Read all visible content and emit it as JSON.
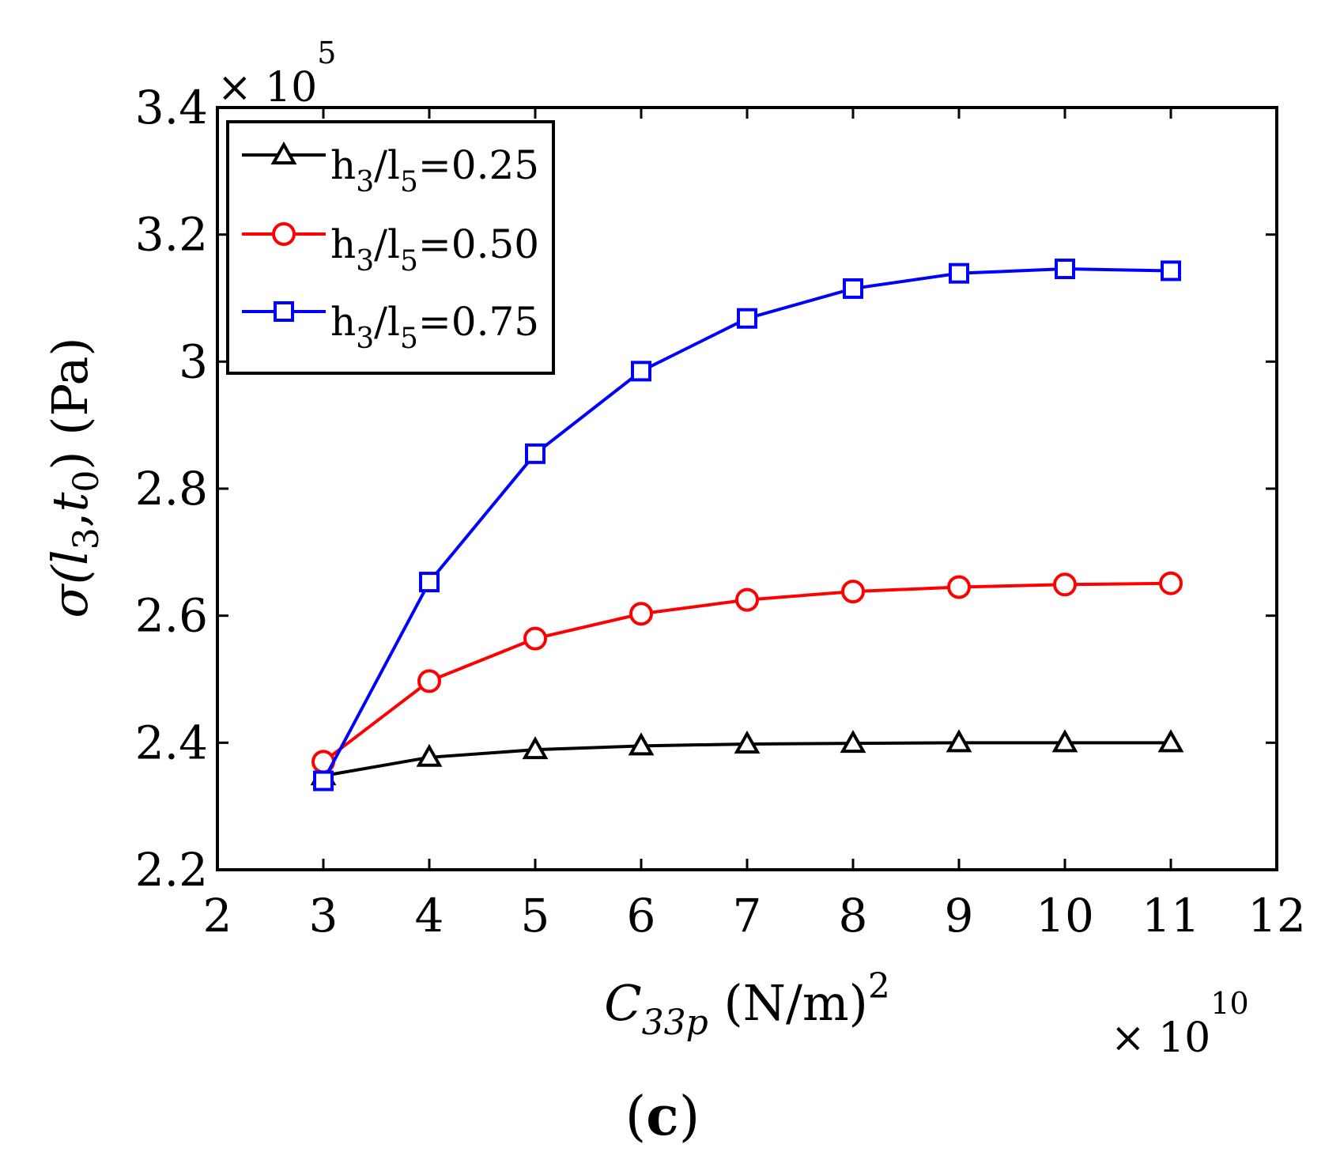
{
  "chart_data": {
    "type": "line",
    "x": [
      3,
      4,
      5,
      6,
      7,
      8,
      9,
      10,
      11
    ],
    "xlim": [
      2,
      12
    ],
    "ylim": [
      2.2,
      3.4
    ],
    "xticks": [
      "2",
      "3",
      "4",
      "5",
      "6",
      "7",
      "8",
      "9",
      "10",
      "11",
      "12"
    ],
    "yticks": [
      "2.2",
      "2.4",
      "2.6",
      "2.8",
      "3",
      "3.2",
      "3.4"
    ],
    "x_multiplier": {
      "base": "× 10",
      "exponent": "10"
    },
    "y_multiplier": {
      "base": "× 10",
      "exponent": "5"
    },
    "xlabel": {
      "symbol": "C",
      "subscript": "33p",
      "unit": " (N/m)",
      "superscript": "2"
    },
    "ylabel": {
      "sigma": "σ(",
      "l": "l",
      "l_sub": "3",
      "comma": ",",
      "t": "t",
      "t_sub": "0",
      "unit": ") (Pa)"
    },
    "legend_position": "top-left",
    "series": [
      {
        "name": "h3/l5=0.25",
        "label": {
          "h": "h",
          "h_sub": "3",
          "l": "/l",
          "l_sub": "5",
          "value": "=0.25"
        },
        "color": "#000000",
        "marker": "triangle",
        "values": [
          2.348,
          2.377,
          2.389,
          2.395,
          2.398,
          2.399,
          2.4,
          2.4,
          2.4
        ]
      },
      {
        "name": "h3/l5=0.50",
        "label": {
          "h": "h",
          "h_sub": "3",
          "l": "/l",
          "l_sub": "5",
          "value": "=0.50"
        },
        "color": "#ff0000",
        "marker": "circle",
        "values": [
          2.37,
          2.497,
          2.564,
          2.603,
          2.625,
          2.638,
          2.645,
          2.649,
          2.651
        ]
      },
      {
        "name": "h3/l5=0.75",
        "label": {
          "h": "h",
          "h_sub": "3",
          "l": "/l",
          "l_sub": "5",
          "value": "=0.75"
        },
        "color": "#0000ff",
        "marker": "square",
        "values": [
          2.34,
          2.653,
          2.855,
          2.985,
          3.068,
          3.115,
          3.139,
          3.146,
          3.143
        ]
      }
    ]
  },
  "caption": {
    "open": "(",
    "letter": "c",
    "close": ")"
  }
}
